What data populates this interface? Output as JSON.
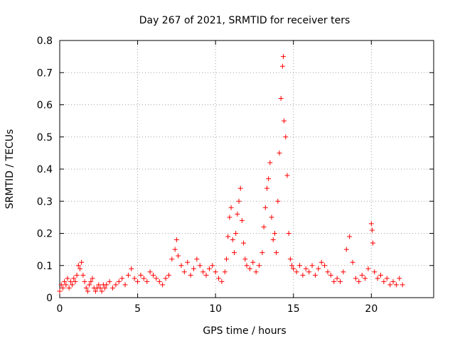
{
  "chart_data": {
    "type": "scatter",
    "title": "Day 267 of 2021, SRMTID for receiver ters",
    "xlabel": "GPS time / hours",
    "ylabel": "SRMTID / TECUs",
    "xlim": [
      0,
      24
    ],
    "ylim": [
      0,
      0.8
    ],
    "x_ticks": [
      0,
      5,
      10,
      15,
      20
    ],
    "x_tick_labels": [
      "0",
      "5",
      "10",
      "15",
      "20"
    ],
    "y_ticks": [
      0,
      0.1,
      0.2,
      0.3,
      0.4,
      0.5,
      0.6,
      0.7,
      0.8
    ],
    "y_tick_labels": [
      "0",
      "0.1",
      "0.2",
      "0.3",
      "0.4",
      "0.5",
      "0.6",
      "0.7",
      "0.8"
    ],
    "grid": true,
    "marker": "+",
    "color": "#ff0000",
    "series": [
      {
        "name": "SRMTID",
        "points": [
          [
            0.0,
            0.02
          ],
          [
            0.1,
            0.04
          ],
          [
            0.2,
            0.03
          ],
          [
            0.3,
            0.05
          ],
          [
            0.4,
            0.04
          ],
          [
            0.5,
            0.06
          ],
          [
            0.6,
            0.03
          ],
          [
            0.7,
            0.05
          ],
          [
            0.8,
            0.04
          ],
          [
            0.9,
            0.06
          ],
          [
            1.0,
            0.05
          ],
          [
            1.1,
            0.07
          ],
          [
            1.2,
            0.1
          ],
          [
            1.3,
            0.09
          ],
          [
            1.4,
            0.11
          ],
          [
            1.5,
            0.07
          ],
          [
            1.6,
            0.05
          ],
          [
            1.7,
            0.03
          ],
          [
            1.8,
            0.02
          ],
          [
            1.9,
            0.04
          ],
          [
            2.0,
            0.05
          ],
          [
            2.1,
            0.06
          ],
          [
            2.2,
            0.03
          ],
          [
            2.3,
            0.02
          ],
          [
            2.4,
            0.03
          ],
          [
            2.5,
            0.04
          ],
          [
            2.6,
            0.03
          ],
          [
            2.7,
            0.02
          ],
          [
            2.8,
            0.04
          ],
          [
            2.9,
            0.03
          ],
          [
            3.0,
            0.04
          ],
          [
            3.2,
            0.05
          ],
          [
            3.4,
            0.03
          ],
          [
            3.6,
            0.04
          ],
          [
            3.8,
            0.05
          ],
          [
            4.0,
            0.06
          ],
          [
            4.2,
            0.04
          ],
          [
            4.4,
            0.07
          ],
          [
            4.6,
            0.09
          ],
          [
            4.8,
            0.06
          ],
          [
            5.0,
            0.05
          ],
          [
            5.2,
            0.07
          ],
          [
            5.4,
            0.06
          ],
          [
            5.6,
            0.05
          ],
          [
            5.8,
            0.08
          ],
          [
            6.0,
            0.07
          ],
          [
            6.2,
            0.06
          ],
          [
            6.4,
            0.05
          ],
          [
            6.6,
            0.04
          ],
          [
            6.8,
            0.06
          ],
          [
            7.0,
            0.07
          ],
          [
            7.2,
            0.12
          ],
          [
            7.4,
            0.15
          ],
          [
            7.5,
            0.18
          ],
          [
            7.6,
            0.13
          ],
          [
            7.8,
            0.1
          ],
          [
            8.0,
            0.08
          ],
          [
            8.2,
            0.11
          ],
          [
            8.4,
            0.07
          ],
          [
            8.6,
            0.09
          ],
          [
            8.8,
            0.12
          ],
          [
            9.0,
            0.1
          ],
          [
            9.2,
            0.08
          ],
          [
            9.4,
            0.07
          ],
          [
            9.6,
            0.09
          ],
          [
            9.8,
            0.1
          ],
          [
            10.0,
            0.08
          ],
          [
            10.2,
            0.06
          ],
          [
            10.4,
            0.05
          ],
          [
            10.6,
            0.08
          ],
          [
            10.7,
            0.12
          ],
          [
            10.8,
            0.19
          ],
          [
            10.9,
            0.25
          ],
          [
            11.0,
            0.28
          ],
          [
            11.1,
            0.18
          ],
          [
            11.2,
            0.14
          ],
          [
            11.3,
            0.2
          ],
          [
            11.4,
            0.26
          ],
          [
            11.5,
            0.3
          ],
          [
            11.6,
            0.34
          ],
          [
            11.7,
            0.24
          ],
          [
            11.8,
            0.17
          ],
          [
            11.9,
            0.12
          ],
          [
            12.0,
            0.1
          ],
          [
            12.2,
            0.09
          ],
          [
            12.4,
            0.11
          ],
          [
            12.6,
            0.08
          ],
          [
            12.8,
            0.1
          ],
          [
            13.0,
            0.14
          ],
          [
            13.1,
            0.22
          ],
          [
            13.2,
            0.28
          ],
          [
            13.3,
            0.34
          ],
          [
            13.4,
            0.37
          ],
          [
            13.5,
            0.42
          ],
          [
            13.6,
            0.25
          ],
          [
            13.7,
            0.18
          ],
          [
            13.8,
            0.2
          ],
          [
            13.9,
            0.14
          ],
          [
            14.0,
            0.3
          ],
          [
            14.1,
            0.45
          ],
          [
            14.2,
            0.62
          ],
          [
            14.3,
            0.72
          ],
          [
            14.35,
            0.75
          ],
          [
            14.4,
            0.55
          ],
          [
            14.5,
            0.5
          ],
          [
            14.6,
            0.38
          ],
          [
            14.7,
            0.2
          ],
          [
            14.8,
            0.12
          ],
          [
            14.9,
            0.1
          ],
          [
            15.0,
            0.09
          ],
          [
            15.2,
            0.08
          ],
          [
            15.4,
            0.1
          ],
          [
            15.6,
            0.07
          ],
          [
            15.8,
            0.09
          ],
          [
            16.0,
            0.08
          ],
          [
            16.2,
            0.1
          ],
          [
            16.4,
            0.07
          ],
          [
            16.6,
            0.09
          ],
          [
            16.8,
            0.11
          ],
          [
            17.0,
            0.1
          ],
          [
            17.2,
            0.08
          ],
          [
            17.4,
            0.07
          ],
          [
            17.6,
            0.05
          ],
          [
            17.8,
            0.06
          ],
          [
            18.0,
            0.05
          ],
          [
            18.2,
            0.08
          ],
          [
            18.4,
            0.15
          ],
          [
            18.6,
            0.19
          ],
          [
            18.8,
            0.11
          ],
          [
            19.0,
            0.06
          ],
          [
            19.2,
            0.05
          ],
          [
            19.4,
            0.07
          ],
          [
            19.6,
            0.06
          ],
          [
            19.8,
            0.09
          ],
          [
            20.0,
            0.23
          ],
          [
            20.05,
            0.21
          ],
          [
            20.1,
            0.17
          ],
          [
            20.2,
            0.08
          ],
          [
            20.4,
            0.06
          ],
          [
            20.6,
            0.07
          ],
          [
            20.8,
            0.05
          ],
          [
            21.0,
            0.06
          ],
          [
            21.2,
            0.04
          ],
          [
            21.4,
            0.05
          ],
          [
            21.6,
            0.04
          ],
          [
            21.8,
            0.06
          ],
          [
            22.0,
            0.04
          ]
        ]
      }
    ]
  }
}
